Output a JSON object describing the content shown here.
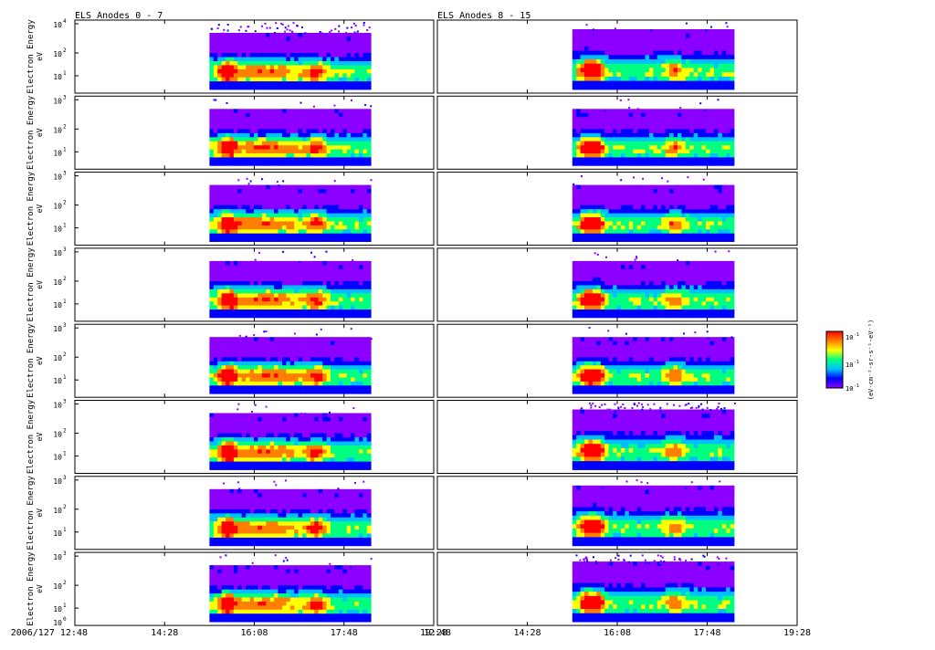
{
  "chart_data": {
    "type": "heatmap",
    "columns": [
      {
        "title": "ELS Anodes 0 - 7",
        "data_start": "15:18",
        "data_end": "18:18"
      },
      {
        "title": "ELS Anodes 8 - 15",
        "data_start": "15:18",
        "data_end": "18:18"
      }
    ],
    "anode_rows": 8,
    "ylabel": "Electron Energy",
    "yunit": "eV",
    "y_scale": "log",
    "ytick_labels_top_row": [
      "10",
      "10",
      "10"
    ],
    "ytick_exponents_top_row": [
      "4",
      "2",
      "1"
    ],
    "ytick_labels": [
      "10",
      "10",
      "10"
    ],
    "ytick_exponents": [
      "3",
      "2",
      "1"
    ],
    "bottom_row_extra_tick": {
      "label": "10",
      "exponent": "0"
    },
    "xtick_labels_left": [
      "2006/127 12:48",
      "14:28",
      "16:08",
      "17:48",
      "19:28"
    ],
    "xtick_labels_right": [
      "12:48",
      "14:28",
      "16:08",
      "17:48",
      "19:28"
    ],
    "colorbar": {
      "label": "(eV cm^-2 s^-1 sr^-1 eV^-1)",
      "label_display": "(eV-cm⁻²-sr-s⁻¹-eV⁻¹)",
      "scale": "log",
      "tick_labels": [
        "10",
        "10",
        "10"
      ],
      "tick_exponents": [
        "-1",
        "-1",
        "-1"
      ],
      "colors": [
        "#8b00ff",
        "#0000ff",
        "#00bfff",
        "#00ff80",
        "#ffff00",
        "#ff8000",
        "#ff0000"
      ]
    }
  }
}
